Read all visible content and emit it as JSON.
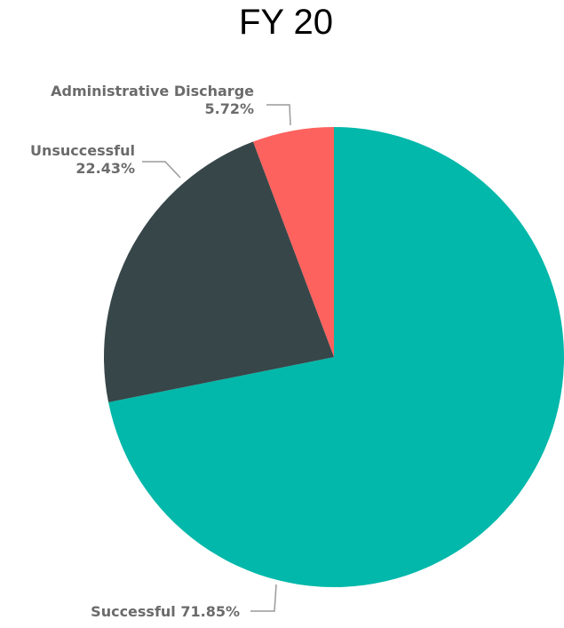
{
  "chart_data": {
    "type": "pie",
    "title": "FY 20",
    "slices": [
      {
        "label": "Successful",
        "value": 71.85,
        "display": "71.85%",
        "color": "#01B8AA"
      },
      {
        "label": "Administrative Discharge",
        "value": 5.72,
        "display": "5.72%",
        "color": "#FD625E"
      },
      {
        "label": "Unsuccessful",
        "value": 22.43,
        "display": "22.43%",
        "color": "#374649"
      }
    ],
    "start_angle_deg": 0,
    "direction": "counterclockwise",
    "legend": "none",
    "data_labels": "outside with leader lines"
  }
}
